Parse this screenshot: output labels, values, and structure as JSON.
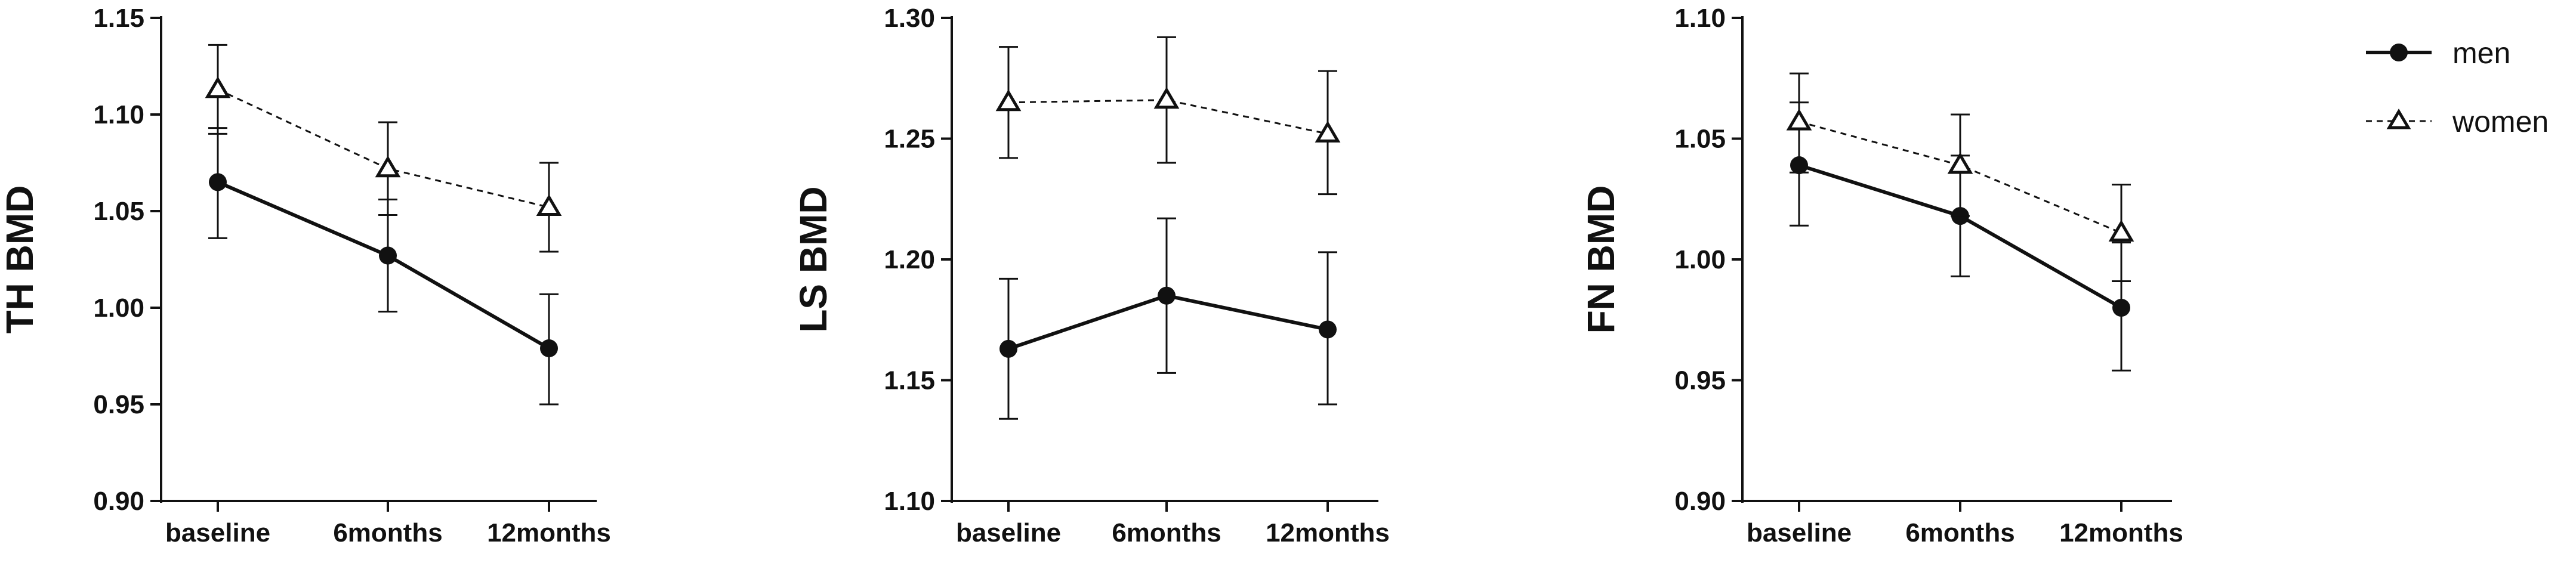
{
  "chart_data": [
    {
      "type": "line",
      "ylabel": "TH BMD",
      "categories": [
        "baseline",
        "6months",
        "12months"
      ],
      "ylim": [
        0.9,
        1.15
      ],
      "yticks": [
        "0.90",
        "0.95",
        "1.00",
        "1.05",
        "1.10",
        "1.15"
      ],
      "series": [
        {
          "name": "men",
          "values": [
            1.065,
            1.027,
            0.979
          ],
          "err_low": [
            1.036,
            0.998,
            0.95
          ],
          "err_high": [
            1.093,
            1.056,
            1.007
          ]
        },
        {
          "name": "women",
          "values": [
            1.113,
            1.072,
            1.052
          ],
          "err_low": [
            1.09,
            1.048,
            1.029
          ],
          "err_high": [
            1.136,
            1.096,
            1.075
          ]
        }
      ]
    },
    {
      "type": "line",
      "ylabel": "LS BMD",
      "categories": [
        "baseline",
        "6months",
        "12months"
      ],
      "ylim": [
        1.1,
        1.3
      ],
      "yticks": [
        "1.10",
        "1.15",
        "1.20",
        "1.25",
        "1.30"
      ],
      "series": [
        {
          "name": "men",
          "values": [
            1.163,
            1.185,
            1.171
          ],
          "err_low": [
            1.134,
            1.153,
            1.14
          ],
          "err_high": [
            1.192,
            1.217,
            1.203
          ]
        },
        {
          "name": "women",
          "values": [
            1.265,
            1.266,
            1.252
          ],
          "err_low": [
            1.242,
            1.24,
            1.227
          ],
          "err_high": [
            1.288,
            1.292,
            1.278
          ]
        }
      ]
    },
    {
      "type": "line",
      "ylabel": "FN BMD",
      "categories": [
        "baseline",
        "6months",
        "12months"
      ],
      "ylim": [
        0.9,
        1.1
      ],
      "yticks": [
        "0.90",
        "0.95",
        "1.00",
        "1.05",
        "1.10"
      ],
      "series": [
        {
          "name": "men",
          "values": [
            1.039,
            1.018,
            0.98
          ],
          "err_low": [
            1.014,
            0.993,
            0.954
          ],
          "err_high": [
            1.065,
            1.043,
            1.007
          ]
        },
        {
          "name": "women",
          "values": [
            1.057,
            1.039,
            1.011
          ],
          "err_low": [
            1.036,
            1.018,
            0.991
          ],
          "err_high": [
            1.077,
            1.06,
            1.031
          ]
        }
      ]
    }
  ],
  "legend": {
    "placement": "top-right",
    "items": [
      {
        "label": "men",
        "marker": "filled-circle",
        "line": "solid"
      },
      {
        "label": "women",
        "marker": "open-triangle",
        "line": "dashed"
      }
    ]
  },
  "colors": {
    "ink": "#111111",
    "background": "#ffffff"
  }
}
